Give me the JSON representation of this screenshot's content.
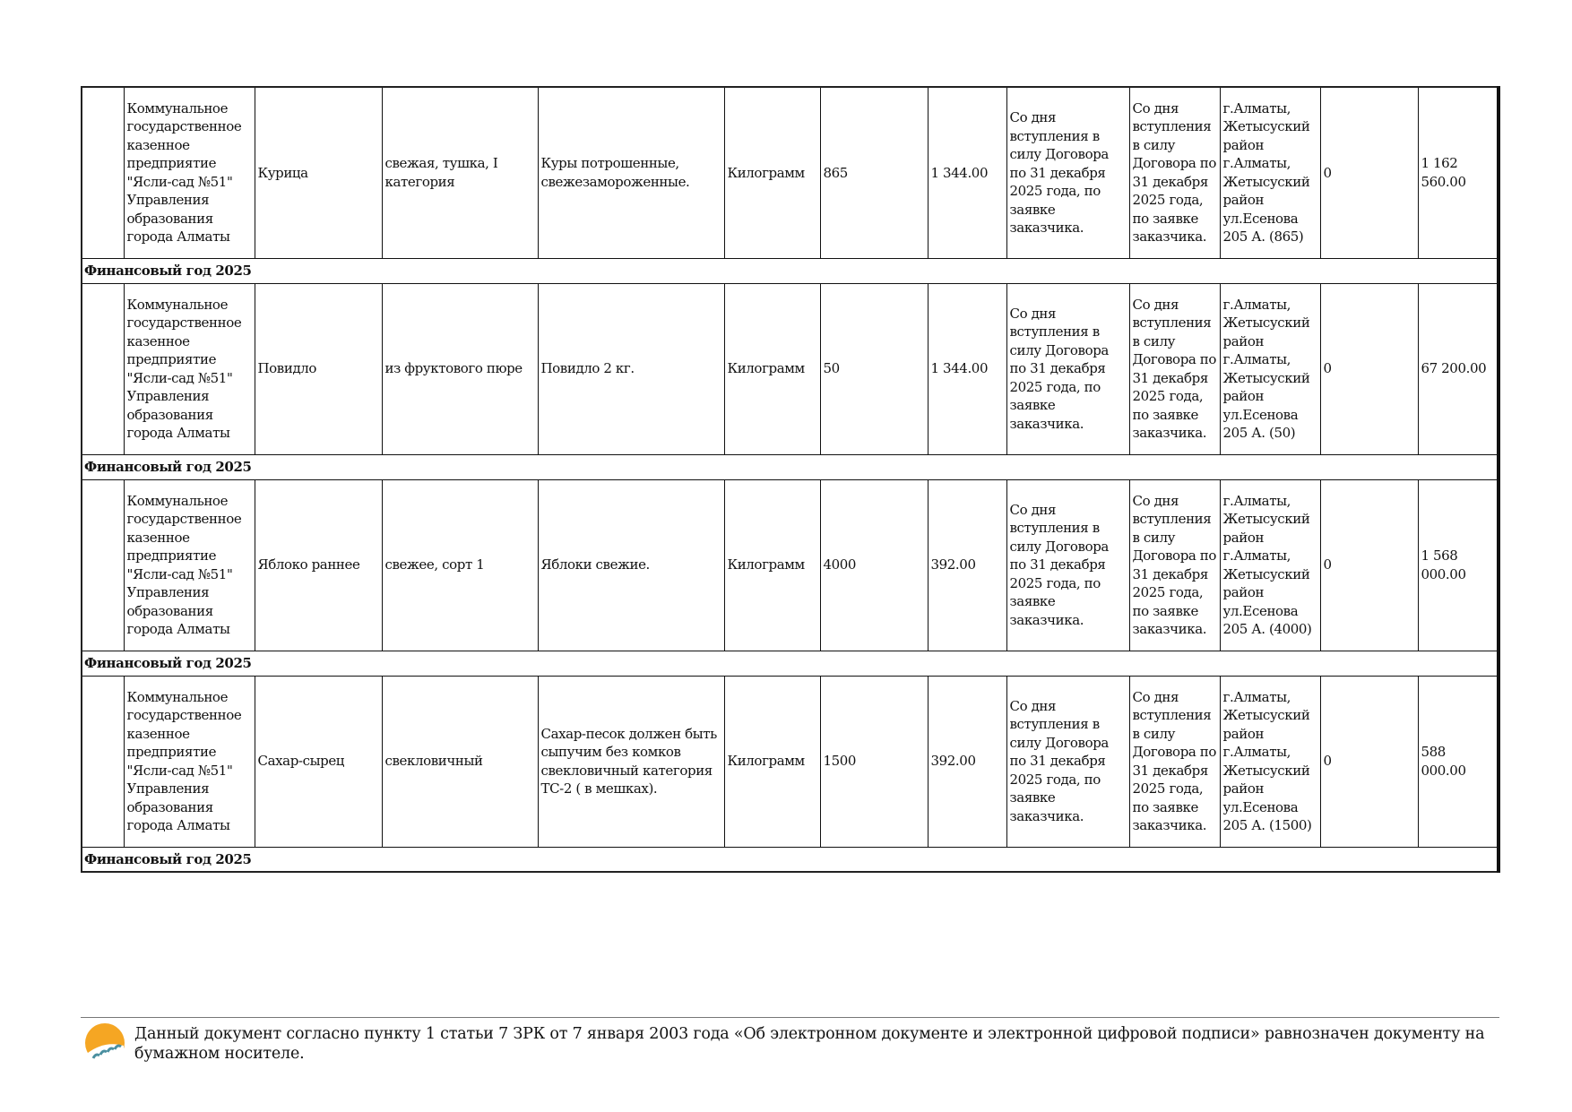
{
  "rows": [
    {
      "customer": "Коммунальное государственное казенное предприятие \"Ясли-сад №51\" Управления образования города Алматы",
      "name": "Курица",
      "characteristics": "свежая, тушка, I категория",
      "description": "Куры потрошенные, свежезамороженные.",
      "unit": "Килограмм",
      "quantity": "865",
      "price": "1 344.00",
      "delivery_term": "Со дня вступления в силу Договора по 31 декабря 2025 года, по заявке заказчика.",
      "delivery_term2": "Со дня вступления в силу Договора по 31 декабря 2025 года, по заявке заказчика.",
      "place": "г.Алматы, Жетысуский район г.Алматы, Жетысуский район ул.Есенова 205 А. (865)",
      "advance": "0",
      "total": "1 162 560.00",
      "fin_year": "Финансовый год 2025"
    },
    {
      "customer": "Коммунальное государственное казенное предприятие \"Ясли-сад №51\" Управления образования города Алматы",
      "name": "Повидло",
      "characteristics": "из фруктового пюре",
      "description": "Повидло 2 кг.",
      "unit": "Килограмм",
      "quantity": "50",
      "price": "1 344.00",
      "delivery_term": "Со дня вступления в силу Договора по 31 декабря 2025 года, по заявке заказчика.",
      "delivery_term2": "Со дня вступления в силу Договора по 31 декабря 2025 года, по заявке заказчика.",
      "place": "г.Алматы, Жетысуский район г.Алматы, Жетысуский район ул.Есенова 205 А. (50)",
      "advance": "0",
      "total": "67 200.00",
      "fin_year": "Финансовый год 2025"
    },
    {
      "customer": "Коммунальное государственное казенное предприятие \"Ясли-сад №51\" Управления образования города Алматы",
      "name": "Яблоко раннее",
      "characteristics": "свежее, сорт 1",
      "description": "Яблоки свежие.",
      "unit": "Килограмм",
      "quantity": "4000",
      "price": "392.00",
      "delivery_term": "Со дня вступления в силу Договора по 31 декабря 2025 года, по заявке заказчика.",
      "delivery_term2": "Со дня вступления в силу Договора по 31 декабря 2025 года, по заявке заказчика.",
      "place": "г.Алматы, Жетысуский район г.Алматы, Жетысуский район ул.Есенова 205 А. (4000)",
      "advance": "0",
      "total": "1 568 000.00",
      "fin_year": "Финансовый год 2025"
    },
    {
      "customer": "Коммунальное государственное казенное предприятие \"Ясли-сад №51\" Управления образования города Алматы",
      "name": "Сахар-сырец",
      "characteristics": "свекловичный",
      "description": "Сахар-песок должен быть сыпучим без комков свекловичный категория ТС-2 ( в мешках).",
      "unit": "Килограмм",
      "quantity": "1500",
      "price": "392.00",
      "delivery_term": "Со дня вступления в силу Договора по 31 декабря 2025 года, по заявке заказчика.",
      "delivery_term2": "Со дня вступления в силу Договора по 31 декабря 2025 года, по заявке заказчика.",
      "place": "г.Алматы, Жетысуский район г.Алматы, Жетысуский район ул.Есенова 205 А. (1500)",
      "advance": "0",
      "total": "588 000.00",
      "fin_year": "Финансовый год 2025"
    }
  ],
  "footer": {
    "text": "Данный документ согласно пункту 1 статьи 7 ЗРК от 7 января 2003 года «Об электронном документе и электронной цифровой подписи» равнозначен документу на бумажном носителе.",
    "logo_icon": "egov-sun-logo",
    "colors": {
      "logo_orange": "#f5a623",
      "logo_teal": "#4a8fa0"
    }
  }
}
